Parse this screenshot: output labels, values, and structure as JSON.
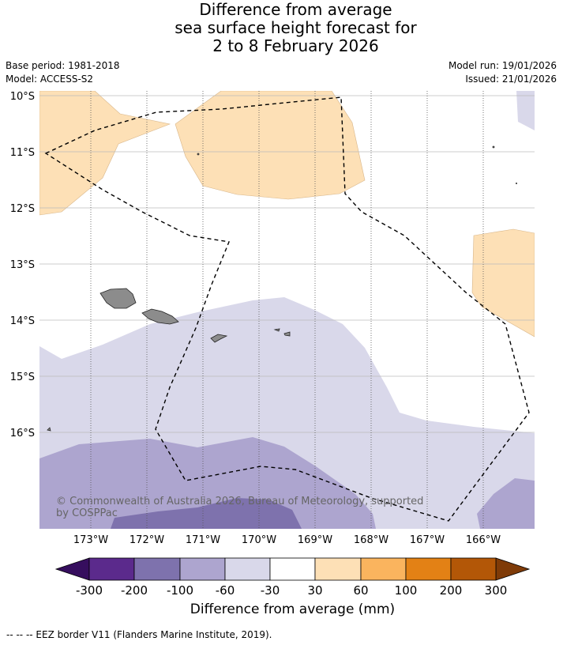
{
  "title": {
    "line1": "Difference from average",
    "line2": "sea surface height forecast for",
    "line3": "2 to 8 February 2026"
  },
  "meta": {
    "base_period": "Base period: 1981-2018",
    "model": "Model: ACCESS-S2",
    "model_run": "Model run: 19/01/2026",
    "issued": "Issued: 21/01/2026"
  },
  "map": {
    "lat_labels": [
      "10°S",
      "11°S",
      "12°S",
      "13°S",
      "14°S",
      "15°S",
      "16°S"
    ],
    "lon_labels": [
      "173°W",
      "172°W",
      "171°W",
      "170°W",
      "169°W",
      "168°W",
      "167°W",
      "166°W"
    ],
    "copyright": {
      "line1": "© Commonwealth of Australia 2026, Bureau of Meteorology, supported",
      "line2": "by COSPPac"
    }
  },
  "colorbar": {
    "labels": [
      "-300",
      "-200",
      "-100",
      "-60",
      "-30",
      "30",
      "60",
      "100",
      "200",
      "300"
    ],
    "colors": [
      "#5b2a8c",
      "#7e72ad",
      "#ada5cf",
      "#d9d8ea",
      "#ffffff",
      "#fde0b6",
      "#fab45e",
      "#e38115",
      "#b35707"
    ],
    "under_color": "#360e5e",
    "over_color": "#7f3b08",
    "title": "Difference from average (mm)"
  },
  "footer": {
    "legend": "-- -- -- EEZ border V11 (Flanders Marine Institute, 2019)."
  }
}
